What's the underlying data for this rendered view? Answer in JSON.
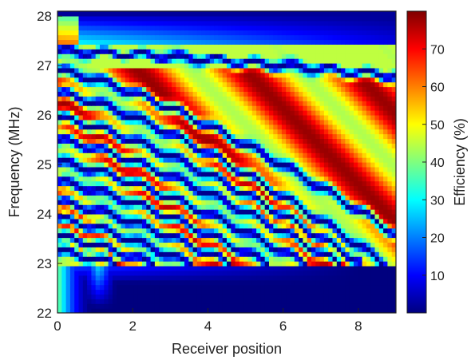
{
  "chart_data": {
    "type": "heatmap",
    "title": "",
    "xlabel": "Receiver position",
    "ylabel": "Frequency (MHz)",
    "xlim": [
      0,
      9
    ],
    "ylim": [
      22,
      28.1
    ],
    "x_ticks": [
      0,
      2,
      4,
      6,
      8
    ],
    "y_ticks": [
      22,
      23,
      24,
      25,
      26,
      27,
      28
    ],
    "colorbar": {
      "label": "Efficiency (%)",
      "range": [
        0,
        80
      ],
      "ticks": [
        10,
        20,
        30,
        40,
        50,
        60,
        70
      ],
      "colormap": "jet"
    },
    "colormap_stops": [
      "#00007f",
      "#0000ff",
      "#007fff",
      "#00ffff",
      "#7fff7f",
      "#ffff00",
      "#ff7f00",
      "#ff0000",
      "#7f0000"
    ],
    "regions": {
      "low_band_upper_edge_MHz": 23.0,
      "high_band_lower_edge_MHz": 27.4,
      "high_band_dark_edge_MHz": 28.0
    },
    "efficiency_peak_percent": 78,
    "minima_lines": [
      {
        "start_freq": 23.25,
        "end_x": 1.5,
        "end_freq": 23.0
      },
      {
        "start_freq": 23.55,
        "end_x": 2.5,
        "end_freq": 23.0
      },
      {
        "start_freq": 23.9,
        "end_x": 3.5,
        "end_freq": 23.0
      },
      {
        "start_freq": 24.25,
        "end_x": 4.6,
        "end_freq": 23.0
      },
      {
        "start_freq": 24.65,
        "end_x": 5.6,
        "end_freq": 23.0
      },
      {
        "start_freq": 25.05,
        "end_x": 6.6,
        "end_freq": 23.0
      },
      {
        "start_freq": 25.5,
        "end_x": 7.5,
        "end_freq": 23.0
      },
      {
        "start_freq": 25.95,
        "end_x": 8.1,
        "end_freq": 23.0
      },
      {
        "start_freq": 26.45,
        "end_x": 8.7,
        "end_freq": 23.0
      },
      {
        "start_freq": 26.9,
        "end_x": 9.0,
        "end_freq": 23.6
      },
      {
        "start_freq": 27.3,
        "end_x": 9.0,
        "end_freq": 26.8
      }
    ]
  }
}
